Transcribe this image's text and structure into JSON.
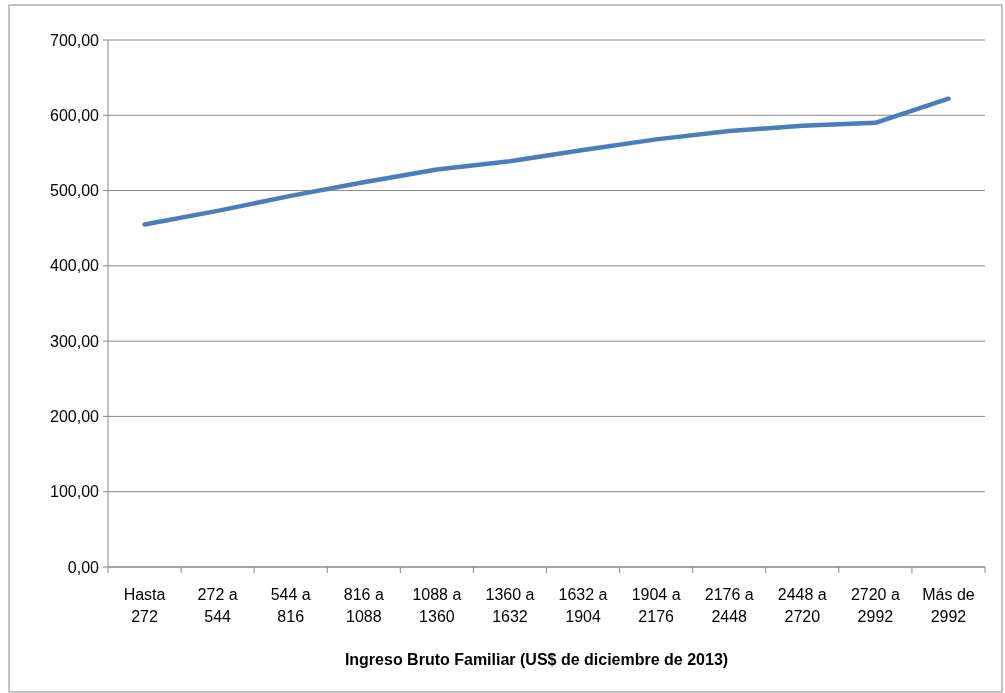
{
  "chart_data": {
    "type": "line",
    "xlabel": "Ingreso Bruto Familiar (US$ de diciembre de 2013)",
    "categories": [
      "Hasta 272",
      "272 a 544",
      "544 a 816",
      "816 a 1088",
      "1088 a 1360",
      "1360 a 1632",
      "1632 a 1904",
      "1904 a 2176",
      "2176 a 2448",
      "2448 a 2720",
      "2720 a 2992",
      "Más de 2992"
    ],
    "series": [
      {
        "color": "#4a7ebb",
        "values": [
          455,
          473,
          493,
          511,
          528,
          539,
          554,
          568,
          579,
          586,
          590,
          622
        ]
      }
    ],
    "ylim": [
      0,
      700
    ],
    "yticks": [
      {
        "value": 0,
        "label": "0,00"
      },
      {
        "value": 100,
        "label": "100,00"
      },
      {
        "value": 200,
        "label": "200,00"
      },
      {
        "value": 300,
        "label": "300,00"
      },
      {
        "value": 400,
        "label": "400,00"
      },
      {
        "value": 500,
        "label": "500,00"
      },
      {
        "value": 600,
        "label": "600,00"
      },
      {
        "value": 700,
        "label": "700,00"
      }
    ],
    "grid": "y",
    "marker": "none",
    "line_style": "solid"
  }
}
